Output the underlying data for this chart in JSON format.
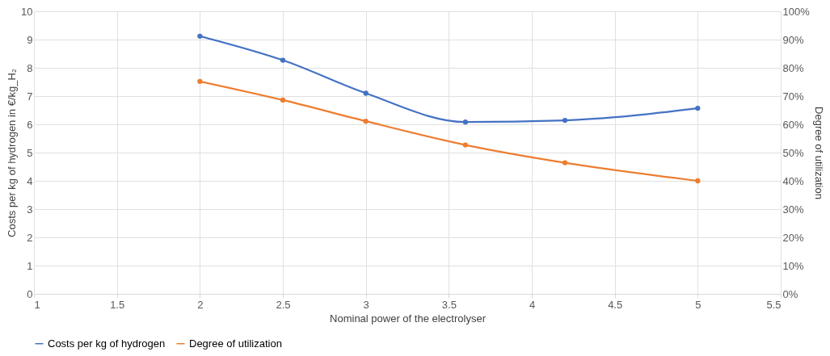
{
  "chart_data": {
    "type": "line",
    "xlabel": "Nominal power of the electrolyser",
    "ylabel": "Costs per kg of hydrogen in €/kg_H₂",
    "y2label": "Degree of utilization",
    "x": [
      2,
      2.5,
      3,
      3.6,
      4.2,
      5
    ],
    "series": [
      {
        "name": "Costs per kg of hydrogen",
        "color": "#4472c4",
        "values": [
          9.12,
          8.27,
          7.1,
          6.08,
          6.14,
          6.57
        ]
      },
      {
        "name": "Degree of utilization",
        "color": "#ed7d31",
        "axis": "y2",
        "values": [
          75.2,
          68.6,
          61.1,
          52.7,
          46.4,
          40.0
        ]
      }
    ],
    "xlim": [
      1,
      5.5
    ],
    "xticks": [
      1,
      1.5,
      2,
      2.5,
      3,
      3.5,
      4,
      4.5,
      5,
      5.5
    ],
    "ylim": [
      0,
      10
    ],
    "yticks": [
      0,
      1,
      2,
      3,
      4,
      5,
      6,
      7,
      8,
      9,
      10
    ],
    "y2lim": [
      0,
      100
    ],
    "y2ticks": [
      {
        "value": 0,
        "label": "0%"
      },
      {
        "value": 10,
        "label": "10%"
      },
      {
        "value": 20,
        "label": "20%"
      },
      {
        "value": 30,
        "label": "30%"
      },
      {
        "value": 40,
        "label": "40%"
      },
      {
        "value": 50,
        "label": "50%"
      },
      {
        "value": 60,
        "label": "60%"
      },
      {
        "value": 70,
        "label": "70%"
      },
      {
        "value": 80,
        "label": "80%"
      },
      {
        "value": 90,
        "label": "90%"
      },
      {
        "value": 100,
        "label": "100%"
      }
    ],
    "grid": true,
    "legend": "bottom",
    "marker": "circle",
    "line_style": "solid"
  }
}
